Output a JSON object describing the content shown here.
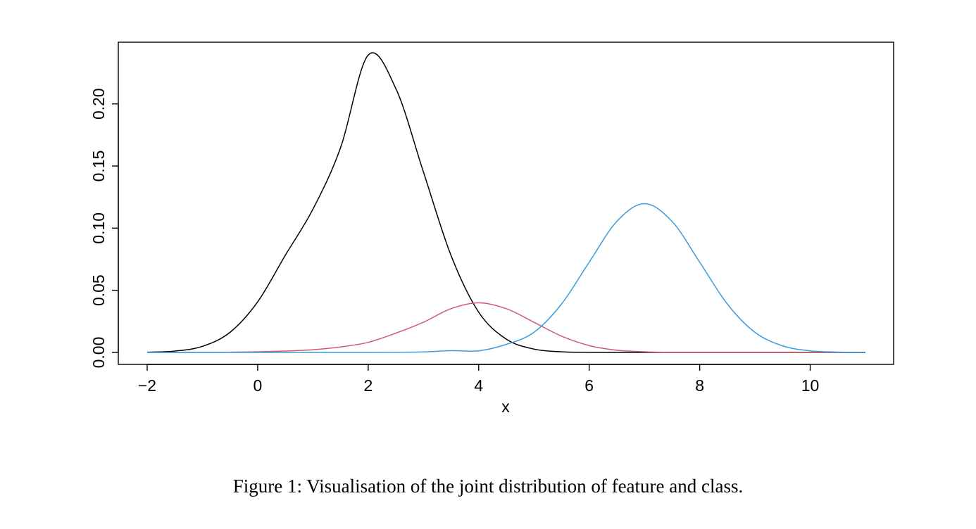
{
  "caption": "Figure 1: Visualisation of the joint distribution of feature and class.",
  "chart_data": {
    "type": "line",
    "title": "",
    "xlabel": "x",
    "ylabel": "",
    "xlim": [
      -2,
      11
    ],
    "ylim": [
      0,
      0.24
    ],
    "xticks": [
      -2,
      0,
      2,
      4,
      6,
      8,
      10
    ],
    "xtick_labels": [
      "−2",
      "0",
      "2",
      "4",
      "6",
      "8",
      "10"
    ],
    "yticks": [
      0,
      0.05,
      0.1,
      0.15,
      0.2
    ],
    "ytick_labels": [
      "0.00",
      "0.05",
      "0.10",
      "0.15",
      "0.20"
    ],
    "grid": false,
    "legend": "none",
    "x": [
      -2,
      -1.5,
      -1,
      -0.5,
      0,
      0.5,
      1,
      1.5,
      2,
      2.5,
      3,
      3.5,
      4,
      4.5,
      5,
      5.5,
      6,
      6.5,
      7,
      7.5,
      8,
      8.5,
      9,
      9.5,
      10,
      10.5,
      11
    ],
    "series": [
      {
        "color": "#000000",
        "values": [
          0.0002,
          0.0011,
          0.0049,
          0.0162,
          0.0407,
          0.0782,
          0.1153,
          0.1647,
          0.2393,
          0.2124,
          0.1452,
          0.078,
          0.0324,
          0.0107,
          0.0027,
          0.0005,
          0.0001,
          0.0,
          0.0,
          0.0,
          0.0,
          0.0,
          0.0,
          0.0,
          0.0,
          0.0,
          0.0
        ]
      },
      {
        "color": "#CD5C6E",
        "values": [
          0.0,
          0.0,
          0.0001,
          0.0002,
          0.0005,
          0.0011,
          0.0022,
          0.0044,
          0.0081,
          0.0155,
          0.0243,
          0.0352,
          0.0399,
          0.0352,
          0.0243,
          0.0131,
          0.0055,
          0.0018,
          0.0005,
          0.0001,
          0.0,
          0.0,
          0.0,
          0.0,
          0.0,
          0.0,
          0.0
        ]
      },
      {
        "color": "#3C9BDC",
        "values": [
          0.0,
          0.0,
          0.0,
          0.0,
          0.0,
          0.0,
          0.0,
          0.0,
          0.0,
          0.0001,
          0.0004,
          0.0014,
          0.0013,
          0.0065,
          0.0162,
          0.039,
          0.0726,
          0.1054,
          0.1197,
          0.1054,
          0.0726,
          0.039,
          0.0162,
          0.0053,
          0.0013,
          0.0003,
          0.0
        ]
      }
    ]
  }
}
